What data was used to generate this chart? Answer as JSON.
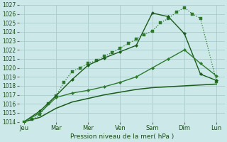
{
  "xlabel": "Pression niveau de la mer( hPa )",
  "background_color": "#cce8e8",
  "grid_color": "#aacccc",
  "ylim": [
    1014,
    1027
  ],
  "xlim": [
    0,
    14
  ],
  "days": [
    "Jeu",
    "Mar",
    "Mer",
    "Ven",
    "Sam",
    "Dim",
    "Lun"
  ],
  "day_x": [
    0,
    2,
    4,
    6,
    8,
    10,
    12
  ],
  "series": [
    {
      "x": [
        0,
        0.5,
        1,
        1.5,
        2,
        2.5,
        3,
        3.5,
        4,
        4.5,
        5,
        5.5,
        6,
        6.5,
        7,
        7.5,
        8,
        8.5,
        9,
        9.5,
        10,
        10.5,
        11,
        12
      ],
      "y": [
        1014.0,
        1014.3,
        1014.8,
        1016.0,
        1016.9,
        1018.4,
        1019.6,
        1020.0,
        1020.5,
        1020.8,
        1021.3,
        1021.7,
        1022.2,
        1022.7,
        1023.2,
        1023.7,
        1024.1,
        1025.0,
        1025.5,
        1026.2,
        1026.7,
        1026.0,
        1025.5,
        1018.5
      ],
      "color": "#2d7a2d",
      "lw": 0.9,
      "marker": "s",
      "ms": 2.2,
      "ls": ":"
    },
    {
      "x": [
        0,
        1,
        2,
        3,
        4,
        5,
        6,
        7,
        8,
        9,
        10,
        11,
        12
      ],
      "y": [
        1014.0,
        1014.5,
        1015.5,
        1016.2,
        1016.6,
        1017.0,
        1017.3,
        1017.6,
        1017.8,
        1017.9,
        1018.0,
        1018.1,
        1018.2
      ],
      "color": "#1a5c1a",
      "lw": 1.1,
      "marker": "",
      "ms": 0,
      "ls": "-"
    },
    {
      "x": [
        0,
        1,
        2,
        3,
        4,
        5,
        6,
        7,
        8,
        9,
        10,
        11,
        12
      ],
      "y": [
        1014.0,
        1015.2,
        1016.9,
        1018.7,
        1020.3,
        1021.1,
        1021.8,
        1022.5,
        1026.1,
        1025.7,
        1023.8,
        1019.3,
        1018.6
      ],
      "color": "#1a5c1a",
      "lw": 1.0,
      "marker": "D",
      "ms": 2.2,
      "ls": "-"
    },
    {
      "x": [
        0,
        1,
        2,
        3,
        4,
        5,
        6,
        7,
        8,
        9,
        10,
        11,
        12
      ],
      "y": [
        1014.0,
        1015.0,
        1016.7,
        1017.2,
        1017.5,
        1017.9,
        1018.4,
        1019.0,
        1020.0,
        1021.0,
        1022.0,
        1020.5,
        1019.1
      ],
      "color": "#2d7a2d",
      "lw": 1.0,
      "marker": "D",
      "ms": 2.2,
      "ls": "-"
    }
  ]
}
